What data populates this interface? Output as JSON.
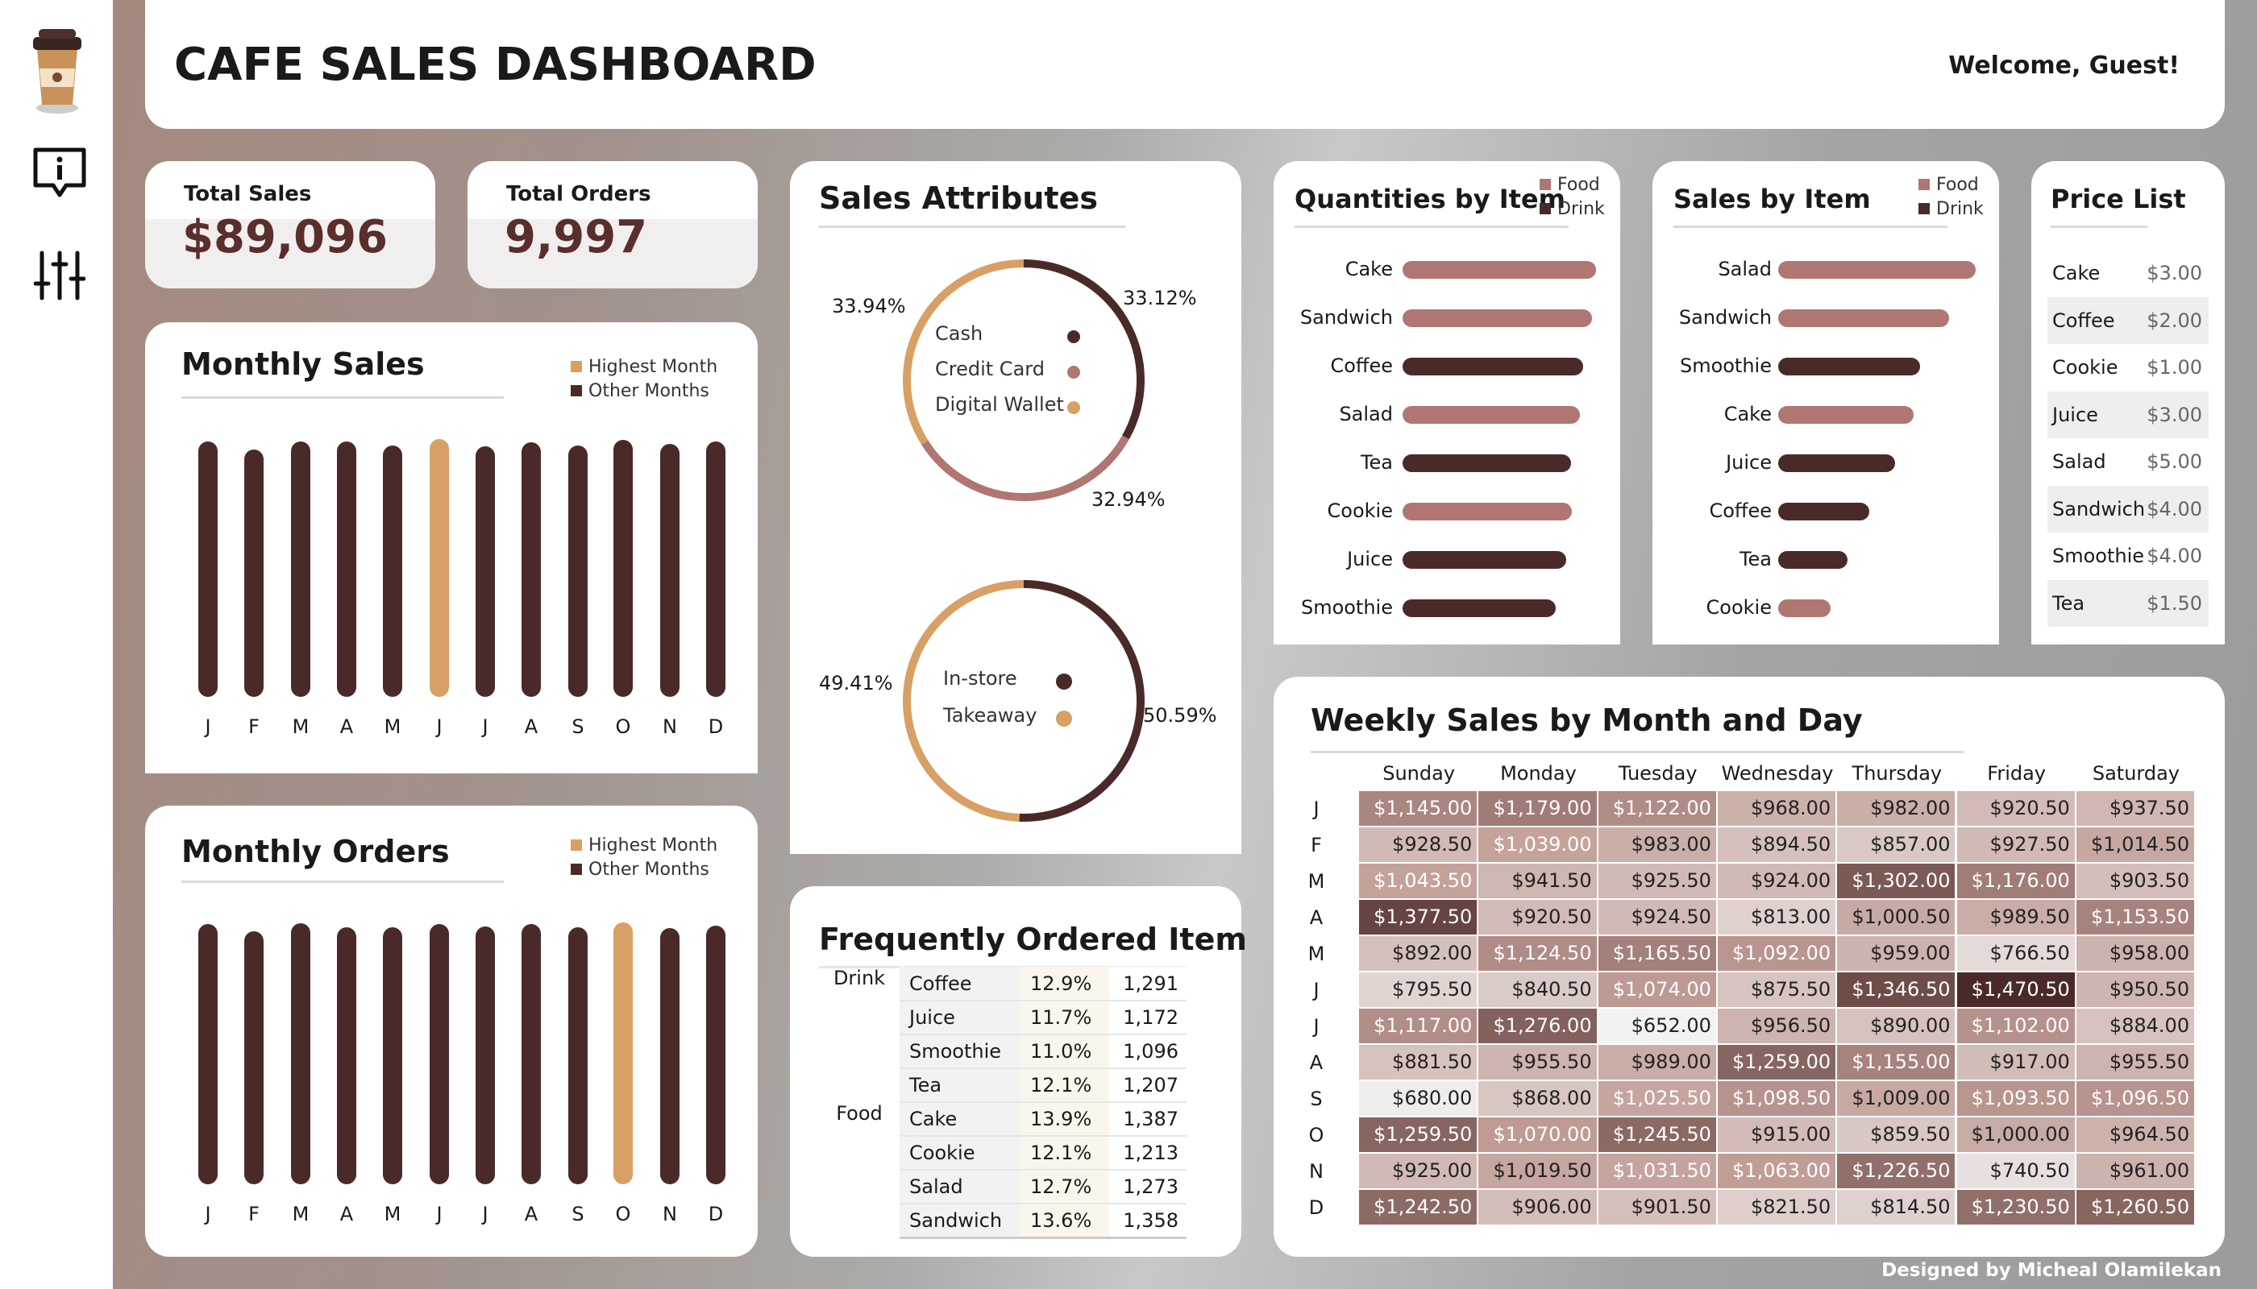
{
  "header": {
    "title": "CAFE SALES DASHBOARD",
    "welcome": "Welcome, Guest!"
  },
  "sidebar": {
    "icons": [
      "coffee-cup-logo",
      "info-chat-icon",
      "sliders-icon"
    ]
  },
  "kpis": {
    "total_sales": {
      "label": "Total Sales",
      "value": "$89,096"
    },
    "total_orders": {
      "label": "Total Orders",
      "value": "9,997"
    }
  },
  "colors": {
    "highlight": "#d8a064",
    "dark": "#4a2a28",
    "food": "#b07672",
    "drink": "#4a2a28"
  },
  "monthly_sales": {
    "title": "Monthly Sales",
    "legend": [
      "Highest Month",
      "Other Months"
    ],
    "months": [
      "J",
      "F",
      "M",
      "A",
      "M",
      "J",
      "J",
      "A",
      "S",
      "O",
      "N",
      "D"
    ],
    "values": [
      7500,
      6900,
      7480,
      7450,
      7200,
      7650,
      7100,
      7400,
      7150,
      7600,
      7300,
      7450
    ],
    "highest_index": 5
  },
  "monthly_orders": {
    "title": "Monthly Orders",
    "legend": [
      "Highest Month",
      "Other Months"
    ],
    "months": [
      "J",
      "F",
      "M",
      "A",
      "M",
      "J",
      "J",
      "A",
      "S",
      "O",
      "N",
      "D"
    ],
    "values": [
      840,
      780,
      850,
      815,
      815,
      845,
      820,
      840,
      815,
      855,
      810,
      830
    ],
    "highest_index": 9
  },
  "sales_attributes": {
    "title": "Sales Attributes",
    "payment": {
      "labels": [
        "Cash",
        "Credit Card",
        "Digital Wallet"
      ],
      "pcts": [
        "33.12%",
        "32.94%",
        "33.94%"
      ],
      "values": [
        33.12,
        32.94,
        33.94
      ],
      "colors": [
        "#4a2a28",
        "#b07672",
        "#d8a064"
      ]
    },
    "location": {
      "labels": [
        "In-store",
        "Takeaway"
      ],
      "pcts": [
        "50.59%",
        "49.41%"
      ],
      "values": [
        50.59,
        49.41
      ],
      "colors": [
        "#4a2a28",
        "#d8a064"
      ]
    }
  },
  "quantities_by_item": {
    "title": "Quantities by Item",
    "legend": [
      "Food",
      "Drink"
    ],
    "items": [
      {
        "name": "Cake",
        "type": "food",
        "value": 1387
      },
      {
        "name": "Sandwich",
        "type": "food",
        "value": 1358
      },
      {
        "name": "Coffee",
        "type": "drink",
        "value": 1291
      },
      {
        "name": "Salad",
        "type": "food",
        "value": 1273
      },
      {
        "name": "Tea",
        "type": "drink",
        "value": 1207
      },
      {
        "name": "Cookie",
        "type": "food",
        "value": 1213
      },
      {
        "name": "Juice",
        "type": "drink",
        "value": 1172
      },
      {
        "name": "Smoothie",
        "type": "drink",
        "value": 1096
      }
    ]
  },
  "sales_by_item": {
    "title": "Sales by Item",
    "legend": [
      "Food",
      "Drink"
    ],
    "items": [
      {
        "name": "Salad",
        "type": "food",
        "value": 6365
      },
      {
        "name": "Sandwich",
        "type": "food",
        "value": 5432
      },
      {
        "name": "Smoothie",
        "type": "drink",
        "value": 4384
      },
      {
        "name": "Cake",
        "type": "food",
        "value": 4161
      },
      {
        "name": "Juice",
        "type": "drink",
        "value": 3516
      },
      {
        "name": "Coffee",
        "type": "drink",
        "value": 2582
      },
      {
        "name": "Tea",
        "type": "drink",
        "value": 1811
      },
      {
        "name": "Cookie",
        "type": "food",
        "value": 1213
      }
    ]
  },
  "price_list": {
    "title": "Price List",
    "rows": [
      {
        "item": "Cake",
        "price": "$3.00"
      },
      {
        "item": "Coffee",
        "price": "$2.00"
      },
      {
        "item": "Cookie",
        "price": "$1.00"
      },
      {
        "item": "Juice",
        "price": "$3.00"
      },
      {
        "item": "Salad",
        "price": "$5.00"
      },
      {
        "item": "Sandwich",
        "price": "$4.00"
      },
      {
        "item": "Smoothie",
        "price": "$4.00"
      },
      {
        "item": "Tea",
        "price": "$1.50"
      }
    ]
  },
  "frequently_ordered": {
    "title": "Frequently Ordered Item",
    "rows": [
      {
        "group": "Drink",
        "item": "Coffee",
        "pct": "12.9%",
        "count": "1,291"
      },
      {
        "group": "",
        "item": "Juice",
        "pct": "11.7%",
        "count": "1,172"
      },
      {
        "group": "",
        "item": "Smoothie",
        "pct": "11.0%",
        "count": "1,096"
      },
      {
        "group": "",
        "item": "Tea",
        "pct": "12.1%",
        "count": "1,207"
      },
      {
        "group": "Food",
        "item": "Cake",
        "pct": "13.9%",
        "count": "1,387"
      },
      {
        "group": "",
        "item": "Cookie",
        "pct": "12.1%",
        "count": "1,213"
      },
      {
        "group": "",
        "item": "Salad",
        "pct": "12.7%",
        "count": "1,273"
      },
      {
        "group": "",
        "item": "Sandwich",
        "pct": "13.6%",
        "count": "1,358"
      }
    ]
  },
  "weekly_sales": {
    "title": "Weekly Sales by Month and Day",
    "days": [
      "Sunday",
      "Monday",
      "Tuesday",
      "Wednesday",
      "Thursday",
      "Friday",
      "Saturday"
    ],
    "months": [
      "J",
      "F",
      "M",
      "A",
      "M",
      "J",
      "J",
      "A",
      "S",
      "O",
      "N",
      "D"
    ],
    "values": [
      [
        "$1,145.00",
        "$1,179.00",
        "$1,122.00",
        "$968.00",
        "$982.00",
        "$920.50",
        "$937.50"
      ],
      [
        "$928.50",
        "$1,039.00",
        "$983.00",
        "$894.50",
        "$857.00",
        "$927.50",
        "$1,014.50"
      ],
      [
        "$1,043.50",
        "$941.50",
        "$925.50",
        "$924.00",
        "$1,302.00",
        "$1,176.00",
        "$903.50"
      ],
      [
        "$1,377.50",
        "$920.50",
        "$924.50",
        "$813.00",
        "$1,000.50",
        "$989.50",
        "$1,153.50"
      ],
      [
        "$892.00",
        "$1,124.50",
        "$1,165.50",
        "$1,092.00",
        "$959.00",
        "$766.50",
        "$958.00"
      ],
      [
        "$795.50",
        "$840.50",
        "$1,074.00",
        "$875.50",
        "$1,346.50",
        "$1,470.50",
        "$950.50"
      ],
      [
        "$1,117.00",
        "$1,276.00",
        "$652.00",
        "$956.50",
        "$890.00",
        "$1,102.00",
        "$884.00"
      ],
      [
        "$881.50",
        "$955.50",
        "$989.00",
        "$1,259.00",
        "$1,155.00",
        "$917.00",
        "$955.50"
      ],
      [
        "$680.00",
        "$868.00",
        "$1,025.50",
        "$1,098.50",
        "$1,009.00",
        "$1,093.50",
        "$1,096.50"
      ],
      [
        "$1,259.50",
        "$1,070.00",
        "$1,245.50",
        "$915.00",
        "$859.50",
        "$1,000.00",
        "$964.50"
      ],
      [
        "$925.00",
        "$1,019.50",
        "$1,031.50",
        "$1,063.00",
        "$1,226.50",
        "$740.50",
        "$961.00"
      ],
      [
        "$1,242.50",
        "$906.00",
        "$901.50",
        "$821.50",
        "$814.50",
        "$1,230.50",
        "$1,260.50"
      ]
    ]
  },
  "footer": {
    "credit": "Designed by Micheal Olamilekan"
  }
}
